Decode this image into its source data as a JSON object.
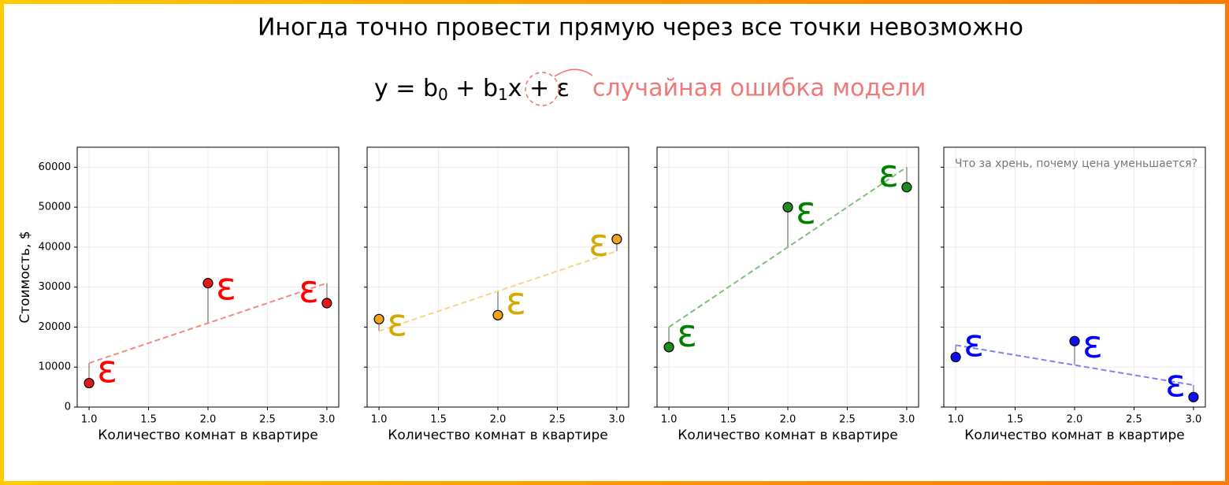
{
  "header": {
    "title": "Иногда точно провести прямую через все точки невозможно",
    "formula": {
      "lead": "y = b",
      "sub_a": "0",
      "mid": " + b",
      "sub_b": "1",
      "tail": "x + ",
      "error": "ε"
    },
    "error_note": "случайная ошибка модели"
  },
  "chart_data": [
    {
      "type": "scatter",
      "x": [
        1,
        2,
        3
      ],
      "series": [
        {
          "color": "#e31a1c",
          "values": [
            6000,
            31000,
            26000
          ]
        }
      ],
      "fit": {
        "color": "#f28b82",
        "values": [
          11000,
          21000,
          31000
        ]
      },
      "annotation": "ε",
      "annotation_color": "#ff0000",
      "xlabel": "Количество комнат в квартире",
      "ylabel": "Стоимость, $",
      "show_ytick_labels": true,
      "xlim": [
        0.9,
        3.1
      ],
      "xticks": [
        {
          "value": 1,
          "label": "1.0"
        },
        {
          "value": 1.5,
          "label": "1.5"
        },
        {
          "value": 2,
          "label": "2.0"
        },
        {
          "value": 2.5,
          "label": "2.5"
        },
        {
          "value": 3,
          "label": "3.0"
        }
      ],
      "ylim": [
        0,
        65000
      ],
      "yticks": [
        0,
        10000,
        20000,
        30000,
        40000,
        50000,
        60000
      ],
      "grid": true
    },
    {
      "type": "scatter",
      "x": [
        1,
        2,
        3
      ],
      "series": [
        {
          "color": "#f4a21c",
          "values": [
            22000,
            23000,
            42000
          ]
        }
      ],
      "fit": {
        "color": "#f7d58a",
        "values": [
          19000,
          29000,
          39000
        ]
      },
      "annotation": "ε",
      "annotation_color": "#d4aa00",
      "xlabel": "Количество комнат в квартире",
      "show_ytick_labels": false,
      "xlim": [
        0.9,
        3.1
      ],
      "xticks": [
        {
          "value": 1,
          "label": "1.0"
        },
        {
          "value": 1.5,
          "label": "1.5"
        },
        {
          "value": 2,
          "label": "2.0"
        },
        {
          "value": 2.5,
          "label": "2.5"
        },
        {
          "value": 3,
          "label": "3.0"
        }
      ],
      "ylim": [
        0,
        65000
      ],
      "yticks": [
        0,
        10000,
        20000,
        30000,
        40000,
        50000,
        60000
      ],
      "grid": true
    },
    {
      "type": "scatter",
      "x": [
        1,
        2,
        3
      ],
      "series": [
        {
          "color": "#1e8b1e",
          "values": [
            15000,
            50000,
            55000
          ]
        }
      ],
      "fit": {
        "color": "#7fbf7f",
        "values": [
          20000,
          40000,
          60000
        ]
      },
      "annotation": "ε",
      "annotation_color": "#008000",
      "xlabel": "Количество комнат в квартире",
      "show_ytick_labels": false,
      "xlim": [
        0.9,
        3.1
      ],
      "xticks": [
        {
          "value": 1,
          "label": "1.0"
        },
        {
          "value": 1.5,
          "label": "1.5"
        },
        {
          "value": 2,
          "label": "2.0"
        },
        {
          "value": 2.5,
          "label": "2.5"
        },
        {
          "value": 3,
          "label": "3.0"
        }
      ],
      "ylim": [
        0,
        65000
      ],
      "yticks": [
        0,
        10000,
        20000,
        30000,
        40000,
        50000,
        60000
      ],
      "grid": true
    },
    {
      "type": "scatter",
      "x": [
        1,
        2,
        3
      ],
      "series": [
        {
          "color": "#1010ee",
          "values": [
            12500,
            16500,
            2500
          ]
        }
      ],
      "fit": {
        "color": "#8080f5",
        "values": [
          15500,
          10500,
          5500
        ]
      },
      "annotation": "ε",
      "annotation_color": "#0000ff",
      "note": "Что за хрень, почему цена уменьшается?",
      "xlabel": "Количество комнат в квартире",
      "show_ytick_labels": false,
      "xlim": [
        0.9,
        3.1
      ],
      "xticks": [
        {
          "value": 1,
          "label": "1.0"
        },
        {
          "value": 1.5,
          "label": "1.5"
        },
        {
          "value": 2,
          "label": "2.0"
        },
        {
          "value": 2.5,
          "label": "2.5"
        },
        {
          "value": 3,
          "label": "3.0"
        }
      ],
      "ylim": [
        0,
        65000
      ],
      "yticks": [
        0,
        10000,
        20000,
        30000,
        40000,
        50000,
        60000
      ],
      "grid": true
    }
  ]
}
